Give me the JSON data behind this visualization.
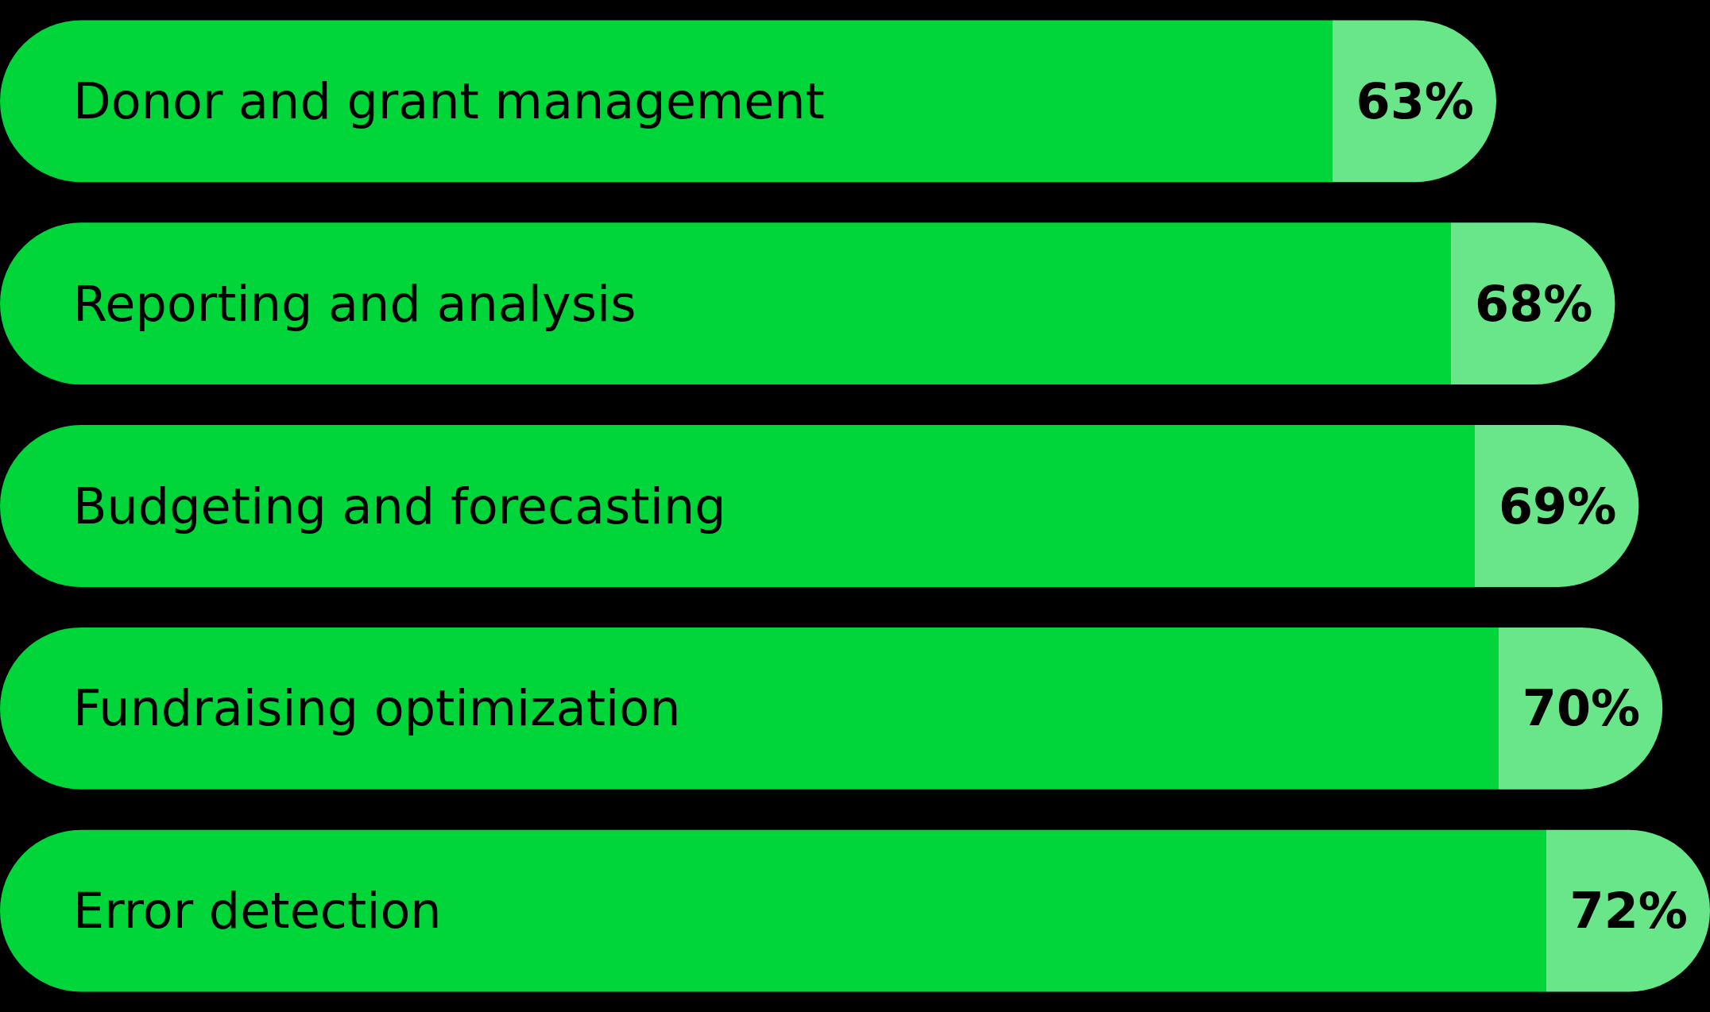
{
  "chart_data": {
    "type": "bar",
    "orientation": "horizontal",
    "categories": [
      "Donor and grant management",
      "Reporting and analysis",
      "Budgeting and forecasting",
      "Fundraising optimization",
      "Error detection"
    ],
    "values": [
      63,
      68,
      69,
      70,
      72
    ],
    "value_labels": [
      "63%",
      "68%",
      "69%",
      "70%",
      "72%"
    ],
    "color": "#00d639"
  }
}
